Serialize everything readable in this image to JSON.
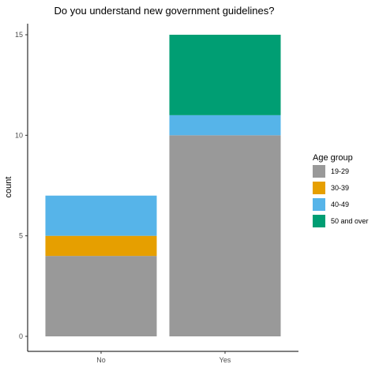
{
  "chart_data": {
    "type": "bar",
    "stacked": true,
    "title": "Do you understand new government guidelines?",
    "xlabel": "",
    "ylabel": "count",
    "categories": [
      "No",
      "Yes"
    ],
    "ylim": [
      0,
      15.5
    ],
    "yticks": [
      0,
      5,
      10,
      15
    ],
    "grid": false,
    "legend": {
      "title": "Age group",
      "position": "right"
    },
    "series": [
      {
        "name": "19-29",
        "color": "#999999",
        "values": [
          4,
          10
        ]
      },
      {
        "name": "30-39",
        "color": "#E69F00",
        "values": [
          1,
          0
        ]
      },
      {
        "name": "40-49",
        "color": "#56B4E9",
        "values": [
          2,
          1
        ]
      },
      {
        "name": "50 and over",
        "color": "#009E73",
        "values": [
          0,
          4
        ]
      }
    ]
  }
}
